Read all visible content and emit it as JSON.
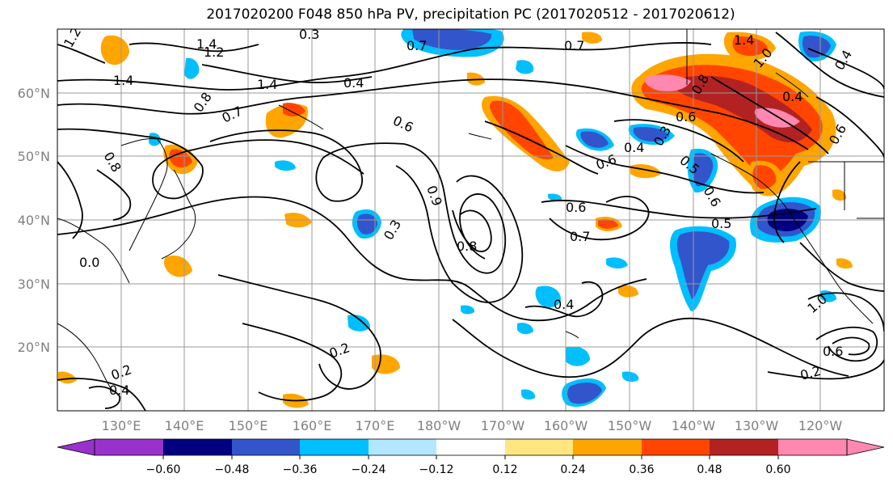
{
  "title": "2017020200 F048 850 hPa PV, precipitation PC (2017020512 - 2017020612)",
  "map": {
    "lon_labels": [
      "130°E",
      "140°E",
      "150°E",
      "160°E",
      "170°E",
      "180°W",
      "170°W",
      "160°W",
      "150°W",
      "140°W",
      "130°W",
      "120°W"
    ],
    "lat_labels": [
      "60°N",
      "50°N",
      "40°N",
      "30°N",
      "20°N"
    ]
  },
  "colorbar": {
    "colors": [
      "#9932cc",
      "#000080",
      "#3355cc",
      "#00bfff",
      "#b3e6ff",
      "#ffffff",
      "#ffe680",
      "#ffa500",
      "#ff4500",
      "#b22222",
      "#ff88b0"
    ],
    "tick_labels": [
      "−0.60",
      "−0.48",
      "−0.36",
      "−0.24",
      "−0.12",
      "0.12",
      "0.24",
      "0.36",
      "0.48",
      "0.60"
    ]
  },
  "contour_labels": [
    {
      "text": "1.4"
    },
    {
      "text": "1.2"
    },
    {
      "text": "1.2"
    },
    {
      "text": "1.4"
    },
    {
      "text": "1.4"
    },
    {
      "text": "0.7"
    },
    {
      "text": "0.7"
    },
    {
      "text": "0.3"
    },
    {
      "text": "0.4"
    },
    {
      "text": "0.7"
    },
    {
      "text": "0.8"
    },
    {
      "text": "0.8"
    },
    {
      "text": "0.6"
    },
    {
      "text": "0.9"
    },
    {
      "text": "0.3"
    },
    {
      "text": "0.8"
    },
    {
      "text": "0.6"
    },
    {
      "text": "0.6"
    },
    {
      "text": "0.7"
    },
    {
      "text": "0.4"
    },
    {
      "text": "0.6"
    },
    {
      "text": "0.5"
    },
    {
      "text": "0.5"
    },
    {
      "text": "0.3"
    },
    {
      "text": "0.6"
    },
    {
      "text": "0.4"
    },
    {
      "text": "0.4"
    },
    {
      "text": "1.4"
    },
    {
      "text": "1.0"
    },
    {
      "text": "0.8"
    },
    {
      "text": "0.4"
    },
    {
      "text": "0.2"
    },
    {
      "text": "0.2"
    },
    {
      "text": "0.2"
    },
    {
      "text": "0.4"
    },
    {
      "text": "0.6"
    },
    {
      "text": "0.0"
    },
    {
      "text": "1.0"
    },
    {
      "text": "0.6"
    }
  ]
}
